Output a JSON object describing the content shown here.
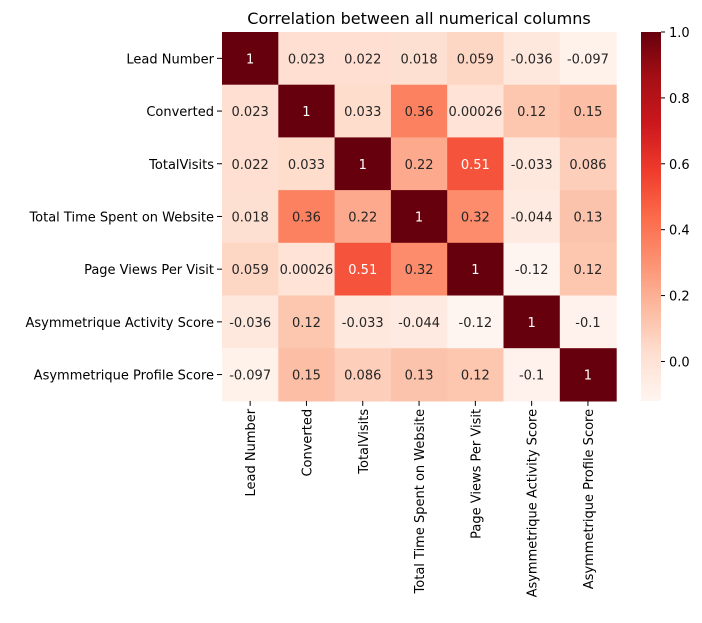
{
  "chart_data": {
    "type": "heatmap",
    "title": "Correlation between all numerical columns",
    "xlabel": "",
    "ylabel": "",
    "labels": [
      "Lead Number",
      "Converted",
      "TotalVisits",
      "Total Time Spent on Website",
      "Page Views Per Visit",
      "Asymmetrique Activity Score",
      "Asymmetrique Profile Score"
    ],
    "values": [
      [
        1,
        0.023,
        0.022,
        0.018,
        0.059,
        -0.036,
        -0.097
      ],
      [
        0.023,
        1,
        0.033,
        0.36,
        0.00026,
        0.12,
        0.15
      ],
      [
        0.022,
        0.033,
        1,
        0.22,
        0.51,
        -0.033,
        0.086
      ],
      [
        0.018,
        0.36,
        0.22,
        1,
        0.32,
        -0.044,
        0.13
      ],
      [
        0.059,
        0.00026,
        0.51,
        0.32,
        1,
        -0.12,
        0.12
      ],
      [
        -0.036,
        0.12,
        -0.033,
        -0.044,
        -0.12,
        1,
        -0.1
      ],
      [
        -0.097,
        0.15,
        0.086,
        0.13,
        0.12,
        -0.1,
        1
      ]
    ],
    "annotations": [
      [
        "1",
        "0.023",
        "0.022",
        "0.018",
        "0.059",
        "-0.036",
        "-0.097"
      ],
      [
        "0.023",
        "1",
        "0.033",
        "0.36",
        "0.00026",
        "0.12",
        "0.15"
      ],
      [
        "0.022",
        "0.033",
        "1",
        "0.22",
        "0.51",
        "-0.033",
        "0.086"
      ],
      [
        "0.018",
        "0.36",
        "0.22",
        "1",
        "0.32",
        "-0.044",
        "0.13"
      ],
      [
        "0.059",
        "0.00026",
        "0.51",
        "0.32",
        "1",
        "-0.12",
        "0.12"
      ],
      [
        "-0.036",
        "0.12",
        "-0.033",
        "-0.044",
        "-0.12",
        "1",
        "-0.1"
      ],
      [
        "-0.097",
        "0.15",
        "0.086",
        "0.13",
        "0.12",
        "-0.1",
        "1"
      ]
    ],
    "colorscale": "Reds",
    "color_range": [
      -0.12,
      1.0
    ],
    "colorbar": {
      "ticks": [
        0.0,
        0.2,
        0.4,
        0.6,
        0.8,
        1.0
      ],
      "tick_labels": [
        "0.0",
        "0.2",
        "0.4",
        "0.6",
        "0.8",
        "1.0"
      ],
      "placement": "right"
    },
    "grid": false,
    "legend": "none"
  }
}
